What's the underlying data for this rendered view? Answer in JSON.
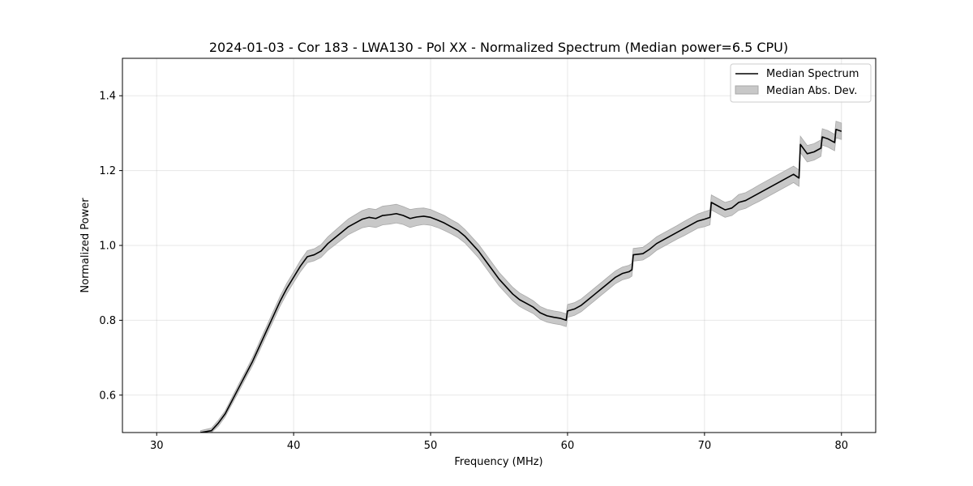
{
  "chart_data": {
    "type": "line",
    "title": "2024-01-03 - Cor 183 - LWA130 - Pol XX - Normalized Spectrum (Median power=6.5 CPU)",
    "xlabel": "Frequency (MHz)",
    "ylabel": "Normalized Power",
    "xlim": [
      27.5,
      82.5
    ],
    "ylim": [
      0.5,
      1.5
    ],
    "xticks": [
      30,
      40,
      50,
      60,
      70,
      80
    ],
    "yticks": [
      0.6,
      0.8,
      1.0,
      1.2,
      1.4
    ],
    "xtick_labels": [
      "30",
      "40",
      "50",
      "60",
      "70",
      "80"
    ],
    "ytick_labels": [
      "0.6",
      "0.8",
      "1.0",
      "1.2",
      "1.4"
    ],
    "grid": true,
    "legend_position": "top-right",
    "series": [
      {
        "name": "Median Spectrum",
        "kind": "line",
        "color": "#000000",
        "x": [
          33.2,
          34.0,
          34.5,
          35.0,
          35.5,
          36.0,
          36.5,
          37.0,
          37.5,
          38.0,
          38.5,
          39.0,
          39.5,
          40.0,
          40.5,
          41.0,
          41.5,
          42.0,
          42.5,
          43.0,
          43.5,
          44.0,
          44.5,
          45.0,
          45.5,
          46.0,
          46.5,
          47.0,
          47.5,
          48.0,
          48.5,
          49.0,
          49.5,
          50.0,
          50.5,
          51.0,
          51.5,
          52.0,
          52.5,
          53.0,
          53.5,
          54.0,
          54.5,
          55.0,
          55.5,
          56.0,
          56.5,
          57.0,
          57.5,
          58.0,
          58.5,
          59.0,
          59.5,
          59.9,
          60.0,
          60.5,
          61.0,
          61.5,
          62.0,
          62.5,
          63.0,
          63.5,
          64.0,
          64.5,
          64.7,
          64.8,
          65.5,
          66.0,
          66.5,
          67.0,
          67.5,
          68.0,
          68.5,
          69.0,
          69.5,
          70.0,
          70.4,
          70.5,
          71.0,
          71.5,
          72.0,
          72.5,
          73.0,
          73.5,
          74.0,
          74.5,
          75.0,
          75.5,
          76.0,
          76.5,
          76.9,
          77.0,
          77.5,
          78.0,
          78.5,
          78.6,
          79.0,
          79.5,
          79.6,
          80.0
        ],
        "values": [
          0.5,
          0.505,
          0.525,
          0.55,
          0.585,
          0.62,
          0.655,
          0.69,
          0.73,
          0.77,
          0.81,
          0.85,
          0.885,
          0.915,
          0.945,
          0.97,
          0.975,
          0.985,
          1.005,
          1.02,
          1.035,
          1.05,
          1.06,
          1.07,
          1.075,
          1.072,
          1.08,
          1.082,
          1.085,
          1.08,
          1.072,
          1.076,
          1.078,
          1.075,
          1.068,
          1.06,
          1.05,
          1.04,
          1.025,
          1.005,
          0.985,
          0.96,
          0.935,
          0.91,
          0.89,
          0.87,
          0.855,
          0.845,
          0.835,
          0.82,
          0.812,
          0.808,
          0.805,
          0.8,
          0.825,
          0.83,
          0.84,
          0.855,
          0.87,
          0.885,
          0.9,
          0.915,
          0.925,
          0.93,
          0.935,
          0.975,
          0.978,
          0.99,
          1.005,
          1.015,
          1.025,
          1.035,
          1.045,
          1.055,
          1.065,
          1.07,
          1.075,
          1.115,
          1.105,
          1.095,
          1.1,
          1.115,
          1.12,
          1.13,
          1.14,
          1.15,
          1.16,
          1.17,
          1.18,
          1.19,
          1.18,
          1.27,
          1.245,
          1.25,
          1.26,
          1.29,
          1.285,
          1.275,
          1.31,
          1.305
        ]
      },
      {
        "name": "Median Abs. Dev.",
        "kind": "band",
        "color": "#c8c8c8",
        "edge_color": "#a9a9a9",
        "half_width": [
          0.005,
          0.007,
          0.008,
          0.008,
          0.009,
          0.01,
          0.01,
          0.011,
          0.012,
          0.012,
          0.013,
          0.013,
          0.014,
          0.014,
          0.015,
          0.016,
          0.016,
          0.017,
          0.018,
          0.019,
          0.02,
          0.021,
          0.022,
          0.023,
          0.024,
          0.024,
          0.025,
          0.025,
          0.025,
          0.024,
          0.024,
          0.023,
          0.022,
          0.021,
          0.02,
          0.02,
          0.019,
          0.019,
          0.018,
          0.018,
          0.018,
          0.018,
          0.018,
          0.018,
          0.018,
          0.018,
          0.018,
          0.018,
          0.017,
          0.017,
          0.017,
          0.017,
          0.017,
          0.017,
          0.017,
          0.017,
          0.017,
          0.017,
          0.017,
          0.017,
          0.017,
          0.017,
          0.017,
          0.017,
          0.017,
          0.017,
          0.017,
          0.018,
          0.018,
          0.018,
          0.018,
          0.018,
          0.019,
          0.019,
          0.019,
          0.02,
          0.02,
          0.02,
          0.02,
          0.02,
          0.02,
          0.021,
          0.021,
          0.021,
          0.022,
          0.022,
          0.022,
          0.022,
          0.022,
          0.022,
          0.022,
          0.022,
          0.022,
          0.022,
          0.022,
          0.022,
          0.022,
          0.022,
          0.022,
          0.022
        ]
      }
    ]
  }
}
